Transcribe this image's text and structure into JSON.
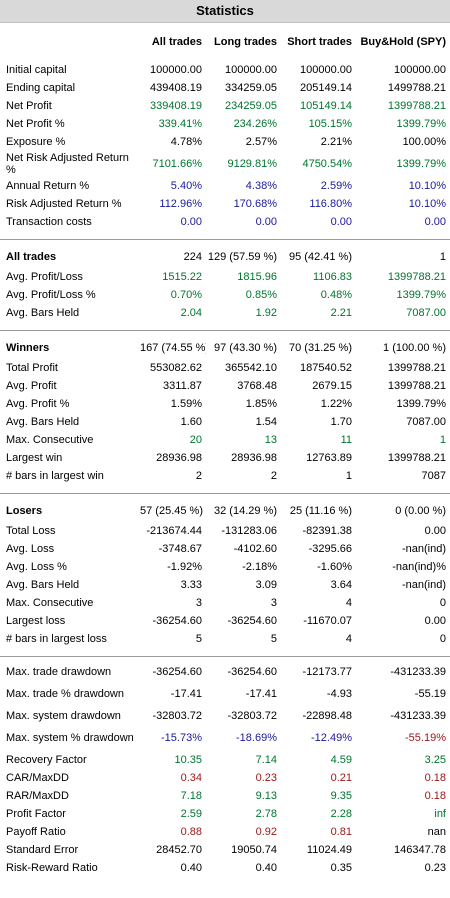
{
  "title": "Statistics",
  "colors": {
    "green": "#00752f",
    "blue": "#1a1a9c",
    "red": "#9b1616",
    "black": "#000000"
  },
  "headers": [
    "All trades",
    "Long trades",
    "Short trades",
    "Buy&Hold (SPY)"
  ],
  "sections": [
    {
      "rows": [
        {
          "label": "Initial capital",
          "values": [
            "100000.00",
            "100000.00",
            "100000.00",
            "100000.00"
          ],
          "color": "black"
        },
        {
          "label": "Ending capital",
          "values": [
            "439408.19",
            "334259.05",
            "205149.14",
            "1499788.21"
          ],
          "color": "black"
        },
        {
          "label": "Net Profit",
          "values": [
            "339408.19",
            "234259.05",
            "105149.14",
            "1399788.21"
          ],
          "color": "green"
        },
        {
          "label": "Net Profit %",
          "values": [
            "339.41%",
            "234.26%",
            "105.15%",
            "1399.79%"
          ],
          "color": "green"
        },
        {
          "label": "Exposure %",
          "values": [
            "4.78%",
            "2.57%",
            "2.21%",
            "100.00%"
          ],
          "color": "black"
        },
        {
          "label": "Net Risk Adjusted Return %",
          "values": [
            "7101.66%",
            "9129.81%",
            "4750.54%",
            "1399.79%"
          ],
          "color": "green",
          "tall": true
        },
        {
          "label": "Annual Return %",
          "values": [
            "5.40%",
            "4.38%",
            "2.59%",
            "10.10%"
          ],
          "color": "blue"
        },
        {
          "label": "Risk Adjusted Return %",
          "values": [
            "112.96%",
            "170.68%",
            "116.80%",
            "10.10%"
          ],
          "color": "blue"
        },
        {
          "label": "Transaction costs",
          "values": [
            "0.00",
            "0.00",
            "0.00",
            "0.00"
          ],
          "color": "blue"
        }
      ]
    },
    {
      "header": {
        "label": "All trades",
        "values": [
          "224",
          "129 (57.59 %)",
          "95 (42.41 %)",
          "1"
        ]
      },
      "rows": [
        {
          "label": "Avg. Profit/Loss",
          "values": [
            "1515.22",
            "1815.96",
            "1106.83",
            "1399788.21"
          ],
          "color": "green",
          "indent": true
        },
        {
          "label": "Avg. Profit/Loss %",
          "values": [
            "0.70%",
            "0.85%",
            "0.48%",
            "1399.79%"
          ],
          "color": "green",
          "indent": true
        },
        {
          "label": "Avg. Bars Held",
          "values": [
            "2.04",
            "1.92",
            "2.21",
            "7087.00"
          ],
          "color": "green",
          "indent": true
        }
      ]
    },
    {
      "header": {
        "label": "Winners",
        "values": [
          "167 (74.55 %)",
          "97 (43.30 %)",
          "70 (31.25 %)",
          "1 (100.00 %)"
        ]
      },
      "rows": [
        {
          "label": "Total Profit",
          "values": [
            "553082.62",
            "365542.10",
            "187540.52",
            "1399788.21"
          ],
          "color": "black",
          "indent": true
        },
        {
          "label": "Avg. Profit",
          "values": [
            "3311.87",
            "3768.48",
            "2679.15",
            "1399788.21"
          ],
          "color": "black",
          "indent": true
        },
        {
          "label": "Avg. Profit %",
          "values": [
            "1.59%",
            "1.85%",
            "1.22%",
            "1399.79%"
          ],
          "color": "black",
          "indent": true
        },
        {
          "label": "Avg. Bars Held",
          "values": [
            "1.60",
            "1.54",
            "1.70",
            "7087.00"
          ],
          "color": "black",
          "indent": true
        },
        {
          "label": "Max. Consecutive",
          "values": [
            "20",
            "13",
            "11",
            "1"
          ],
          "color": "green",
          "indent": true
        },
        {
          "label": "Largest win",
          "values": [
            "28936.98",
            "28936.98",
            "12763.89",
            "1399788.21"
          ],
          "color": "black",
          "indent": true
        },
        {
          "label": "# bars in largest win",
          "values": [
            "2",
            "2",
            "1",
            "7087"
          ],
          "color": "black",
          "indent": true
        }
      ]
    },
    {
      "header": {
        "label": "Losers",
        "values": [
          "57 (25.45 %)",
          "32 (14.29 %)",
          "25 (11.16 %)",
          "0 (0.00 %)"
        ]
      },
      "rows": [
        {
          "label": "Total Loss",
          "values": [
            "-213674.44",
            "-131283.06",
            "-82391.38",
            "0.00"
          ],
          "color": "black",
          "indent": true
        },
        {
          "label": "Avg. Loss",
          "values": [
            "-3748.67",
            "-4102.60",
            "-3295.66",
            "-nan(ind)"
          ],
          "color": "black",
          "indent": true
        },
        {
          "label": "Avg. Loss %",
          "values": [
            "-1.92%",
            "-2.18%",
            "-1.60%",
            "-nan(ind)%"
          ],
          "color": "black",
          "indent": true
        },
        {
          "label": "Avg. Bars Held",
          "values": [
            "3.33",
            "3.09",
            "3.64",
            "-nan(ind)"
          ],
          "color": "black",
          "indent": true
        },
        {
          "label": "Max. Consecutive",
          "values": [
            "3",
            "3",
            "4",
            "0"
          ],
          "color": "black",
          "indent": true
        },
        {
          "label": "Largest loss",
          "values": [
            "-36254.60",
            "-36254.60",
            "-11670.07",
            "0.00"
          ],
          "color": "black",
          "indent": true
        },
        {
          "label": "# bars in largest loss",
          "values": [
            "5",
            "5",
            "4",
            "0"
          ],
          "color": "black",
          "indent": true
        }
      ]
    },
    {
      "rows": [
        {
          "label": "Max. trade drawdown",
          "values": [
            "-36254.60",
            "-36254.60",
            "-12173.77",
            "-431233.39"
          ],
          "color": "black"
        },
        {
          "label": "Max. trade % drawdown",
          "values": [
            "-17.41",
            "-17.41",
            "-4.93",
            "-55.19"
          ],
          "color": "black",
          "tall": true
        },
        {
          "label": "Max. system drawdown",
          "values": [
            "-32803.72",
            "-32803.72",
            "-22898.48",
            "-431233.39"
          ],
          "color": "black"
        },
        {
          "label": "Max. system % drawdown",
          "values": [
            "-15.73%",
            "-18.69%",
            "-12.49%",
            "-55.19%"
          ],
          "color": "blue",
          "lastColor": "red",
          "tall": true
        },
        {
          "label": "Recovery Factor",
          "values": [
            "10.35",
            "7.14",
            "4.59",
            "3.25"
          ],
          "color": "green"
        },
        {
          "label": "CAR/MaxDD",
          "values": [
            "0.34",
            "0.23",
            "0.21",
            "0.18"
          ],
          "color": "red"
        },
        {
          "label": "RAR/MaxDD",
          "values": [
            "7.18",
            "9.13",
            "9.35",
            "0.18"
          ],
          "color": "green",
          "lastColor": "red"
        },
        {
          "label": "Profit Factor",
          "values": [
            "2.59",
            "2.78",
            "2.28",
            "inf"
          ],
          "color": "green"
        },
        {
          "label": "Payoff Ratio",
          "values": [
            "0.88",
            "0.92",
            "0.81",
            "nan"
          ],
          "color": "red",
          "lastColor": "black"
        },
        {
          "label": "Standard Error",
          "values": [
            "28452.70",
            "19050.74",
            "11024.49",
            "146347.78"
          ],
          "color": "black"
        },
        {
          "label": "Risk-Reward Ratio",
          "values": [
            "0.40",
            "0.40",
            "0.35",
            "0.23"
          ],
          "color": "black"
        }
      ]
    }
  ]
}
